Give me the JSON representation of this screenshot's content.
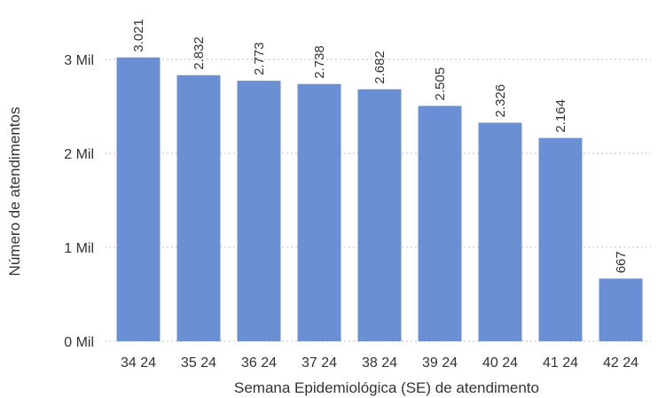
{
  "chart_data": {
    "type": "bar",
    "categories": [
      "34 24",
      "35 24",
      "36 24",
      "37 24",
      "38 24",
      "39 24",
      "40 24",
      "41 24",
      "42 24"
    ],
    "values": [
      3021,
      2832,
      2773,
      2738,
      2682,
      2505,
      2326,
      2164,
      667
    ],
    "data_labels": [
      "3.021",
      "2.832",
      "2.773",
      "2.738",
      "2.682",
      "2.505",
      "2.326",
      "2.164",
      "667"
    ],
    "title": "",
    "xlabel": "Semana Epidemiológica (SE) de atendimento",
    "ylabel": "Número de atendimentos",
    "yticks": [
      0,
      1000,
      2000,
      3000
    ],
    "ytick_labels": [
      "0 Mil",
      "1 Mil",
      "2 Mil",
      "3 Mil"
    ],
    "ylim": [
      0,
      3000
    ],
    "grid": true,
    "bar_color": "#6a8fd4",
    "legend": "none"
  }
}
